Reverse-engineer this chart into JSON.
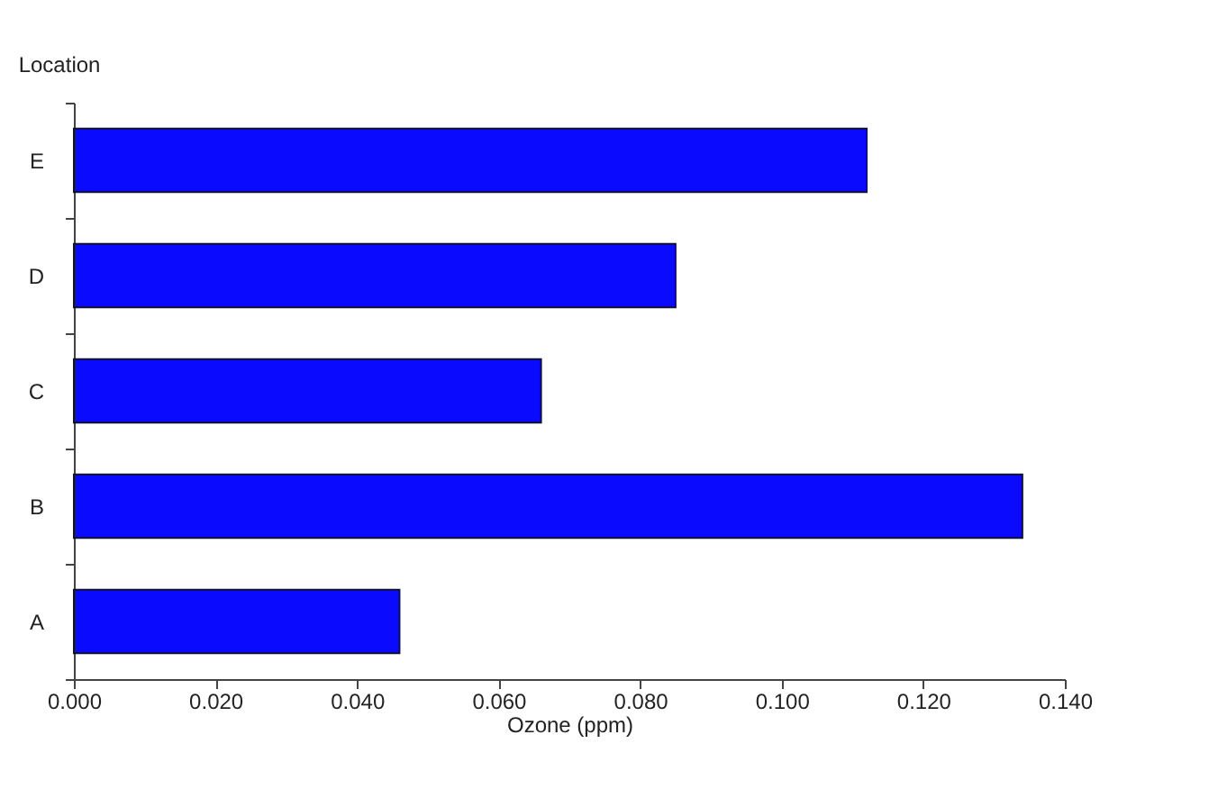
{
  "chart_data": {
    "type": "bar",
    "orientation": "horizontal",
    "xlabel": "Ozone (ppm)",
    "ylabel": "Location",
    "categories": [
      "E",
      "D",
      "C",
      "B",
      "A"
    ],
    "values": [
      0.112,
      0.085,
      0.066,
      0.134,
      0.046
    ],
    "color": "#0a0aff",
    "xlim": [
      0,
      0.14
    ],
    "xticks": [
      {
        "value": 0,
        "label": "0.000"
      },
      {
        "value": 0.02,
        "label": "0.020"
      },
      {
        "value": 0.04,
        "label": "0.040"
      },
      {
        "value": 0.06,
        "label": "0.060"
      },
      {
        "value": 0.08,
        "label": "0.080"
      },
      {
        "value": 0.1,
        "label": "0.100"
      },
      {
        "value": 0.12,
        "label": "0.120"
      },
      {
        "value": 0.14,
        "label": "0.140"
      }
    ],
    "grid": false
  }
}
